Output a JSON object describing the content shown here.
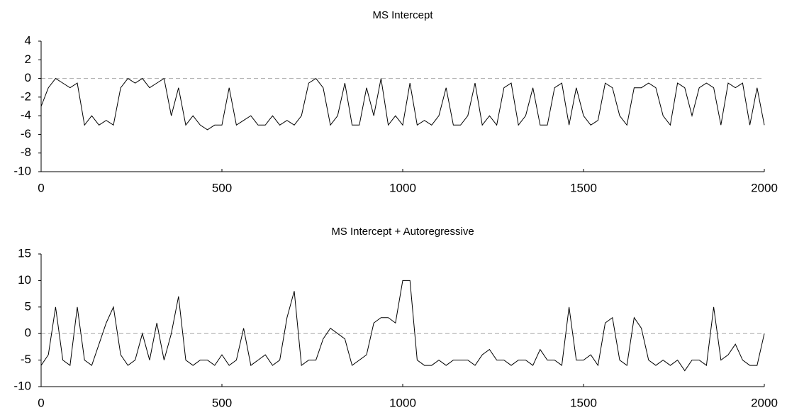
{
  "chart_data": [
    {
      "type": "line",
      "title": "MS Intercept",
      "x": [
        0,
        20,
        40,
        60,
        80,
        100,
        120,
        140,
        160,
        180,
        200,
        220,
        240,
        260,
        280,
        300,
        320,
        340,
        360,
        380,
        400,
        420,
        440,
        460,
        480,
        500,
        520,
        540,
        560,
        580,
        600,
        620,
        640,
        660,
        680,
        700,
        720,
        740,
        760,
        780,
        800,
        820,
        840,
        860,
        880,
        900,
        920,
        940,
        960,
        980,
        1000,
        1020,
        1040,
        1060,
        1080,
        1100,
        1120,
        1140,
        1160,
        1180,
        1200,
        1220,
        1240,
        1260,
        1280,
        1300,
        1320,
        1340,
        1360,
        1380,
        1400,
        1420,
        1440,
        1460,
        1480,
        1500,
        1520,
        1540,
        1560,
        1580,
        1600,
        1620,
        1640,
        1660,
        1680,
        1700,
        1720,
        1740,
        1760,
        1780,
        1800,
        1820,
        1840,
        1860,
        1880,
        1900,
        1920,
        1940,
        1960,
        1980,
        2000
      ],
      "series": [
        {
          "color": "#000000",
          "values": [
            -3,
            -1,
            0,
            -0.5,
            -1,
            -0.5,
            -5,
            -4,
            -5,
            -4.5,
            -5,
            -1,
            0,
            -0.5,
            0,
            -1,
            -0.5,
            0,
            -4,
            -1,
            -5,
            -4,
            -5,
            -5.5,
            -5,
            -5,
            -1,
            -5,
            -4.5,
            -4,
            -5,
            -5,
            -4,
            -5,
            -4.5,
            -5,
            -4,
            -0.5,
            0,
            -1,
            -5,
            -4,
            -0.5,
            -5,
            -5,
            -1,
            -4,
            0,
            -5,
            -4,
            -5,
            -0.5,
            -5,
            -4.5,
            -5,
            -4,
            -1,
            -5,
            -5,
            -4,
            -0.5,
            -5,
            -4,
            -5,
            -1,
            -0.5,
            -5,
            -4,
            -1,
            -5,
            -5,
            -1,
            -0.5,
            -5,
            -1,
            -4,
            -5,
            -4.5,
            -0.5,
            -1,
            -4,
            -5,
            -1,
            -1,
            -0.5,
            -1,
            -4,
            -5,
            -0.5,
            -1,
            -4,
            -1,
            -0.5,
            -1,
            -5,
            -0.5,
            -1,
            -0.5,
            -5,
            -1,
            -5
          ]
        }
      ],
      "reference_line": 0,
      "xlim": [
        0,
        2000
      ],
      "xticks": [
        0,
        500,
        1000,
        1500,
        2000
      ],
      "ylim": [
        -10,
        4
      ],
      "yticks": [
        4,
        2,
        0,
        -2,
        -4,
        -6,
        -8,
        -10
      ]
    },
    {
      "type": "line",
      "title": "MS Intercept + Autoregressive",
      "x": [
        0,
        20,
        40,
        60,
        80,
        100,
        120,
        140,
        160,
        180,
        200,
        220,
        240,
        260,
        280,
        300,
        320,
        340,
        360,
        380,
        400,
        420,
        440,
        460,
        480,
        500,
        520,
        540,
        560,
        580,
        600,
        620,
        640,
        660,
        680,
        700,
        720,
        740,
        760,
        780,
        800,
        820,
        840,
        860,
        880,
        900,
        920,
        940,
        960,
        980,
        1000,
        1020,
        1040,
        1060,
        1080,
        1100,
        1120,
        1140,
        1160,
        1180,
        1200,
        1220,
        1240,
        1260,
        1280,
        1300,
        1320,
        1340,
        1360,
        1380,
        1400,
        1420,
        1440,
        1460,
        1480,
        1500,
        1520,
        1540,
        1560,
        1580,
        1600,
        1620,
        1640,
        1660,
        1680,
        1700,
        1720,
        1740,
        1760,
        1780,
        1800,
        1820,
        1840,
        1860,
        1880,
        1900,
        1920,
        1940,
        1960,
        1980,
        2000
      ],
      "series": [
        {
          "color": "#000000",
          "values": [
            -6,
            -4,
            5,
            -5,
            -6,
            5,
            -5,
            -6,
            -2,
            2,
            5,
            -4,
            -6,
            -5,
            0,
            -5,
            2,
            -5,
            0,
            7,
            -5,
            -6,
            -5,
            -5,
            -6,
            -4,
            -6,
            -5,
            1,
            -6,
            -5,
            -4,
            -6,
            -5,
            3,
            8,
            -6,
            -5,
            -5,
            -1,
            1,
            0,
            -1,
            -6,
            -5,
            -4,
            2,
            3,
            3,
            2,
            10,
            10,
            -5,
            -6,
            -6,
            -5,
            -6,
            -5,
            -5,
            -5,
            -6,
            -4,
            -3,
            -5,
            -5,
            -6,
            -5,
            -5,
            -6,
            -3,
            -5,
            -5,
            -6,
            5,
            -5,
            -5,
            -4,
            -6,
            2,
            3,
            -5,
            -6,
            3,
            1,
            -5,
            -6,
            -5,
            -6,
            -5,
            -7,
            -5,
            -5,
            -6,
            5,
            -5,
            -4,
            -2,
            -5,
            -6,
            -6,
            0
          ]
        }
      ],
      "reference_line": 0,
      "xlim": [
        0,
        2000
      ],
      "xticks": [
        0,
        500,
        1000,
        1500,
        2000
      ],
      "ylim": [
        -10,
        15
      ],
      "yticks": [
        15,
        10,
        5,
        0,
        -5,
        -10
      ]
    }
  ]
}
